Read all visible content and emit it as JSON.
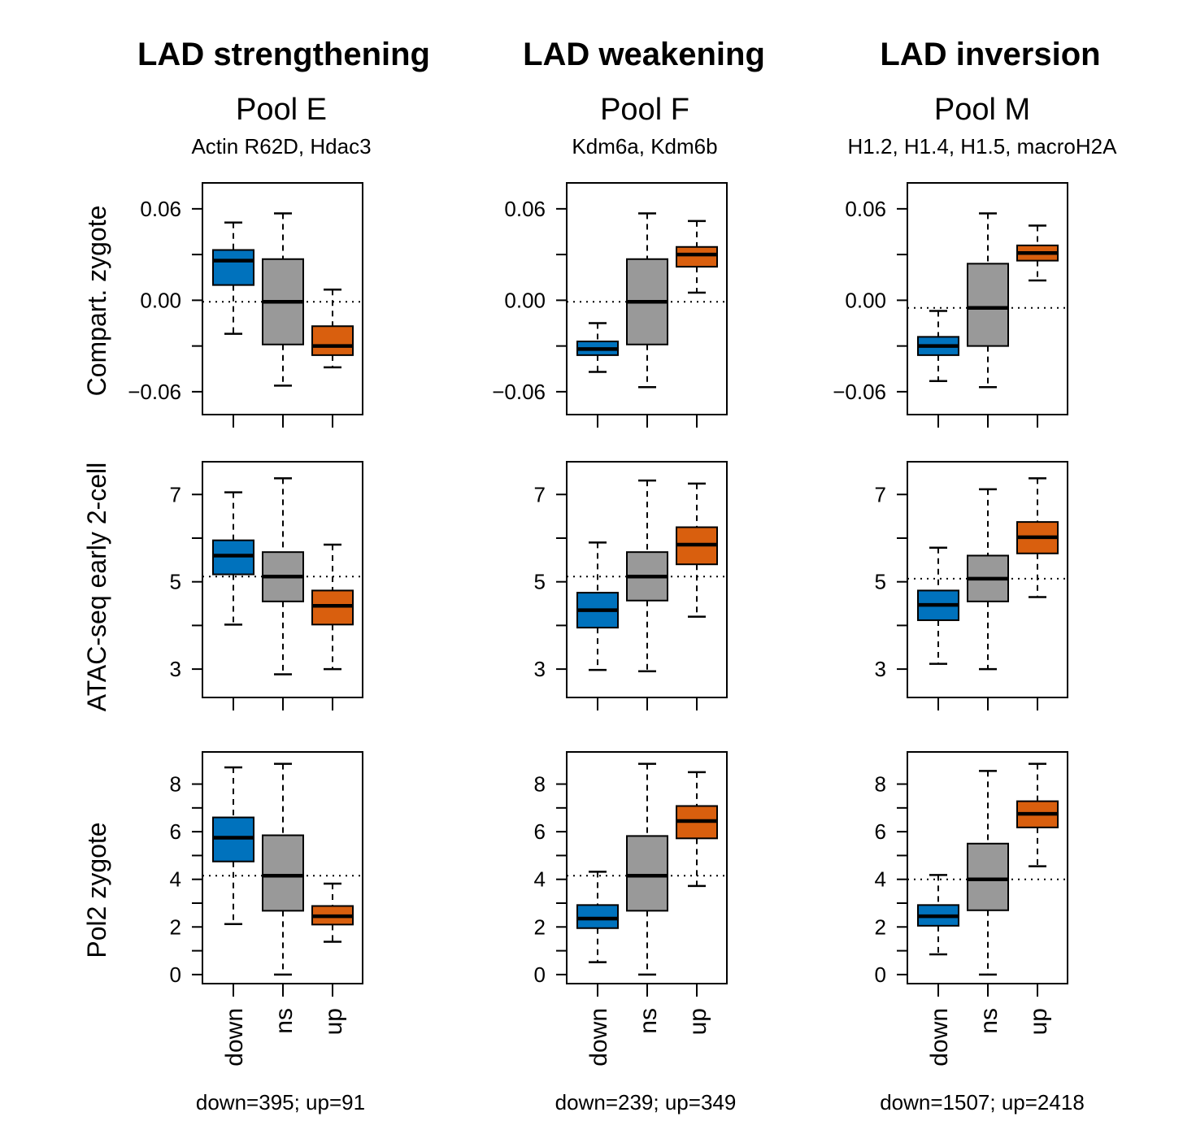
{
  "colors": {
    "down": "#0072bd",
    "ns": "#999999",
    "up": "#d95f0e"
  },
  "columns": [
    {
      "title": "LAD strengthening",
      "pool": "Pool E",
      "genes": "Actin R62D, Hdac3",
      "footnote": "down=395; up=91"
    },
    {
      "title": "LAD weakening",
      "pool": "Pool F",
      "genes": "Kdm6a, Kdm6b",
      "footnote": "down=239; up=349"
    },
    {
      "title": "LAD inversion",
      "pool": "Pool M",
      "genes": "H1.2, H1.4, H1.5, macroH2A",
      "footnote": "down=1507; up=2418"
    }
  ],
  "chart_data": {
    "type": "boxplot",
    "categories": [
      "down",
      "ns",
      "up"
    ],
    "rows": [
      {
        "ylabel": "Compart. zygote",
        "yticks": [
          "0.06",
          "0.00",
          "−0.06"
        ],
        "tick_values": [
          0.06,
          0.0,
          -0.06
        ],
        "ylim": [
          -0.075,
          0.077
        ],
        "panels": [
          {
            "reference": -0.001,
            "boxes": [
              {
                "category": "down",
                "whisker_low": -0.022,
                "q1": 0.01,
                "median": 0.026,
                "q3": 0.033,
                "whisker_high": 0.051
              },
              {
                "category": "ns",
                "whisker_low": -0.056,
                "q1": -0.029,
                "median": -0.001,
                "q3": 0.027,
                "whisker_high": 0.057
              },
              {
                "category": "up",
                "whisker_low": -0.044,
                "q1": -0.036,
                "median": -0.03,
                "q3": -0.017,
                "whisker_high": 0.007
              }
            ]
          },
          {
            "reference": -0.001,
            "boxes": [
              {
                "category": "down",
                "whisker_low": -0.047,
                "q1": -0.036,
                "median": -0.032,
                "q3": -0.027,
                "whisker_high": -0.015
              },
              {
                "category": "ns",
                "whisker_low": -0.057,
                "q1": -0.029,
                "median": -0.001,
                "q3": 0.027,
                "whisker_high": 0.057
              },
              {
                "category": "up",
                "whisker_low": 0.005,
                "q1": 0.022,
                "median": 0.03,
                "q3": 0.035,
                "whisker_high": 0.052
              }
            ]
          },
          {
            "reference": -0.005,
            "boxes": [
              {
                "category": "down",
                "whisker_low": -0.053,
                "q1": -0.036,
                "median": -0.03,
                "q3": -0.024,
                "whisker_high": -0.007
              },
              {
                "category": "ns",
                "whisker_low": -0.057,
                "q1": -0.03,
                "median": -0.005,
                "q3": 0.024,
                "whisker_high": 0.057
              },
              {
                "category": "up",
                "whisker_low": 0.013,
                "q1": 0.026,
                "median": 0.031,
                "q3": 0.036,
                "whisker_high": 0.049
              }
            ]
          }
        ]
      },
      {
        "ylabel": "ATAC-seq early 2-cell",
        "yticks": [
          "7",
          "5",
          "3"
        ],
        "tick_values": [
          7,
          5,
          3
        ],
        "ylim": [
          2.35,
          7.75
        ],
        "panels": [
          {
            "reference": 5.12,
            "boxes": [
              {
                "category": "down",
                "whisker_low": 4.02,
                "q1": 5.17,
                "median": 5.6,
                "q3": 5.95,
                "whisker_high": 7.05
              },
              {
                "category": "ns",
                "whisker_low": 2.88,
                "q1": 4.55,
                "median": 5.12,
                "q3": 5.68,
                "whisker_high": 7.37
              },
              {
                "category": "up",
                "whisker_low": 3.0,
                "q1": 4.02,
                "median": 4.45,
                "q3": 4.8,
                "whisker_high": 5.85
              }
            ]
          },
          {
            "reference": 5.12,
            "boxes": [
              {
                "category": "down",
                "whisker_low": 2.98,
                "q1": 3.95,
                "median": 4.35,
                "q3": 4.75,
                "whisker_high": 5.9
              },
              {
                "category": "ns",
                "whisker_low": 2.95,
                "q1": 4.57,
                "median": 5.12,
                "q3": 5.68,
                "whisker_high": 7.32
              },
              {
                "category": "up",
                "whisker_low": 4.2,
                "q1": 5.4,
                "median": 5.85,
                "q3": 6.25,
                "whisker_high": 7.25
              }
            ]
          },
          {
            "reference": 5.07,
            "boxes": [
              {
                "category": "down",
                "whisker_low": 3.12,
                "q1": 4.12,
                "median": 4.47,
                "q3": 4.8,
                "whisker_high": 5.78
              },
              {
                "category": "ns",
                "whisker_low": 3.0,
                "q1": 4.55,
                "median": 5.07,
                "q3": 5.6,
                "whisker_high": 7.12
              },
              {
                "category": "up",
                "whisker_low": 4.65,
                "q1": 5.65,
                "median": 6.02,
                "q3": 6.37,
                "whisker_high": 7.37
              }
            ]
          }
        ]
      },
      {
        "ylabel": "Pol2  zygote",
        "yticks": [
          "8",
          "6",
          "4",
          "2",
          "0"
        ],
        "tick_values": [
          8,
          6,
          4,
          2,
          0
        ],
        "ylim": [
          -0.38,
          9.35
        ],
        "panels": [
          {
            "reference": 4.15,
            "boxes": [
              {
                "category": "down",
                "whisker_low": 2.12,
                "q1": 4.75,
                "median": 5.75,
                "q3": 6.6,
                "whisker_high": 8.7
              },
              {
                "category": "ns",
                "whisker_low": 0.0,
                "q1": 2.68,
                "median": 4.15,
                "q3": 5.85,
                "whisker_high": 8.85
              },
              {
                "category": "up",
                "whisker_low": 1.38,
                "q1": 2.1,
                "median": 2.45,
                "q3": 2.88,
                "whisker_high": 3.82
              }
            ]
          },
          {
            "reference": 4.15,
            "boxes": [
              {
                "category": "down",
                "whisker_low": 0.52,
                "q1": 1.95,
                "median": 2.35,
                "q3": 2.92,
                "whisker_high": 4.32
              },
              {
                "category": "ns",
                "whisker_low": 0.0,
                "q1": 2.68,
                "median": 4.15,
                "q3": 5.82,
                "whisker_high": 8.85
              },
              {
                "category": "up",
                "whisker_low": 3.72,
                "q1": 5.72,
                "median": 6.45,
                "q3": 7.08,
                "whisker_high": 8.5
              }
            ]
          },
          {
            "reference": 4.0,
            "boxes": [
              {
                "category": "down",
                "whisker_low": 0.85,
                "q1": 2.05,
                "median": 2.45,
                "q3": 2.92,
                "whisker_high": 4.18
              },
              {
                "category": "ns",
                "whisker_low": 0.0,
                "q1": 2.7,
                "median": 4.0,
                "q3": 5.5,
                "whisker_high": 8.55
              },
              {
                "category": "up",
                "whisker_low": 4.55,
                "q1": 6.18,
                "median": 6.75,
                "q3": 7.28,
                "whisker_high": 8.85
              }
            ]
          }
        ]
      }
    ]
  }
}
